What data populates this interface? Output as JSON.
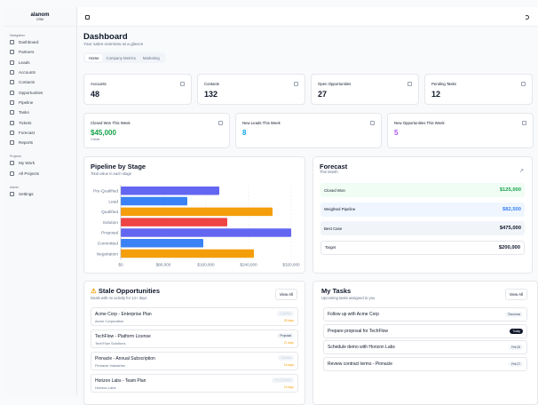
{
  "sidebar": {
    "brand": "alanom",
    "brand_sub": "CRM",
    "sections": [
      {
        "label": "Navigation",
        "items": [
          "Dashboard",
          "Partners",
          "Leads",
          "Accounts",
          "Contacts",
          "Opportunities",
          "Pipeline",
          "Tasks",
          "Tickets",
          "Forecast",
          "Reports"
        ]
      },
      {
        "label": "Projects",
        "items": [
          "My Work",
          "All Projects"
        ]
      },
      {
        "label": "Admin",
        "items": [
          "Settings"
        ]
      }
    ]
  },
  "header": {
    "title": "Dashboard",
    "subtitle": "Your sales overview at a glance",
    "tabs": [
      "Home",
      "Company Metrics",
      "Marketing"
    ]
  },
  "stats": [
    {
      "label": "Accounts",
      "value": "48",
      "icon": "building-icon"
    },
    {
      "label": "Contacts",
      "value": "132",
      "icon": "user-icon"
    },
    {
      "label": "Open Opportunities",
      "value": "27",
      "icon": "target-icon"
    },
    {
      "label": "Pending Tasks",
      "value": "12",
      "icon": "calendar-icon"
    }
  ],
  "weekly": [
    {
      "label": "Closed Won This Week",
      "value": "$45,000",
      "note": "3 deals",
      "color": "#16a34a",
      "icon": "trophy-icon"
    },
    {
      "label": "New Leads This Week",
      "value": "8",
      "color": "#0ea5e9",
      "icon": "user-plus-icon"
    },
    {
      "label": "New Opportunities This Week",
      "value": "5",
      "color": "#a855f7",
      "icon": "rocket-icon"
    }
  ],
  "pipeline": {
    "title": "Pipeline by Stage",
    "subtitle": "Total value in each stage"
  },
  "chart_data": {
    "type": "bar",
    "orientation": "horizontal",
    "categories": [
      "Pre-Qualified",
      "Lead",
      "Qualified",
      "Solution",
      "Proposal",
      "Committed",
      "Negotiation"
    ],
    "values": [
      185000,
      125000,
      285000,
      200000,
      320000,
      155000,
      250000
    ],
    "colors": [
      "#6366f1",
      "#3b82f6",
      "#f59e0b",
      "#ef4444",
      "#6366f1",
      "#3b82f6",
      "#f59e0b"
    ],
    "xlim": [
      0,
      320000
    ],
    "ticks": [
      "$0",
      "$80,000",
      "$160,000",
      "$240,000",
      "$320,000"
    ],
    "tick_values": [
      0,
      80000,
      160000,
      240000,
      320000
    ],
    "grid": true
  },
  "forecast": {
    "title": "Forecast",
    "subtitle": "This Month",
    "rows": [
      {
        "label": "Closed Won",
        "value": "$125,000",
        "bg": "#f0fdf4",
        "color": "#16a34a"
      },
      {
        "label": "Weighted Pipeline",
        "value": "$82,500",
        "bg": "#eff6ff",
        "color": "#3b82f6"
      },
      {
        "label": "Best Case",
        "value": "$475,000",
        "bg": "#f1f5f9",
        "color": "#0f172a"
      },
      {
        "label": "Target",
        "value": "$200,000",
        "bg": "#ffffff",
        "color": "#0f172a"
      }
    ]
  },
  "stale": {
    "title": "Stale Opportunities",
    "subtitle": "Deals with no activity for 14+ days",
    "view_all": "View All",
    "items": [
      {
        "title": "Acme Corp - Enterprise Plan",
        "company": "Acme Corporation",
        "stage": "Qualified",
        "days": "28 days"
      },
      {
        "title": "TechFlow - Platform License",
        "company": "TechFlow Solutions",
        "stage": "Proposal",
        "days": "21 days"
      },
      {
        "title": "Pinnacle - Annual Subscription",
        "company": "Pinnacle Industries",
        "stage": "Solution",
        "days": "18 days"
      },
      {
        "title": "Horizon Labs - Team Plan",
        "company": "Horizon Labs",
        "stage": "Pre-Qualified",
        "days": "16 days"
      }
    ]
  },
  "tasks": {
    "title": "My Tasks",
    "subtitle": "Upcoming tasks assigned to you",
    "view_all": "View All",
    "items": [
      {
        "title": "Follow up with Acme Corp",
        "due": "Tomorrow"
      },
      {
        "title": "Prepare proposal for TechFlow",
        "due": "Today"
      },
      {
        "title": "Schedule demo with Horizon Labs",
        "due": "Feb 25"
      },
      {
        "title": "Review contract terms - Pinnacle",
        "due": "Feb 27"
      }
    ]
  }
}
